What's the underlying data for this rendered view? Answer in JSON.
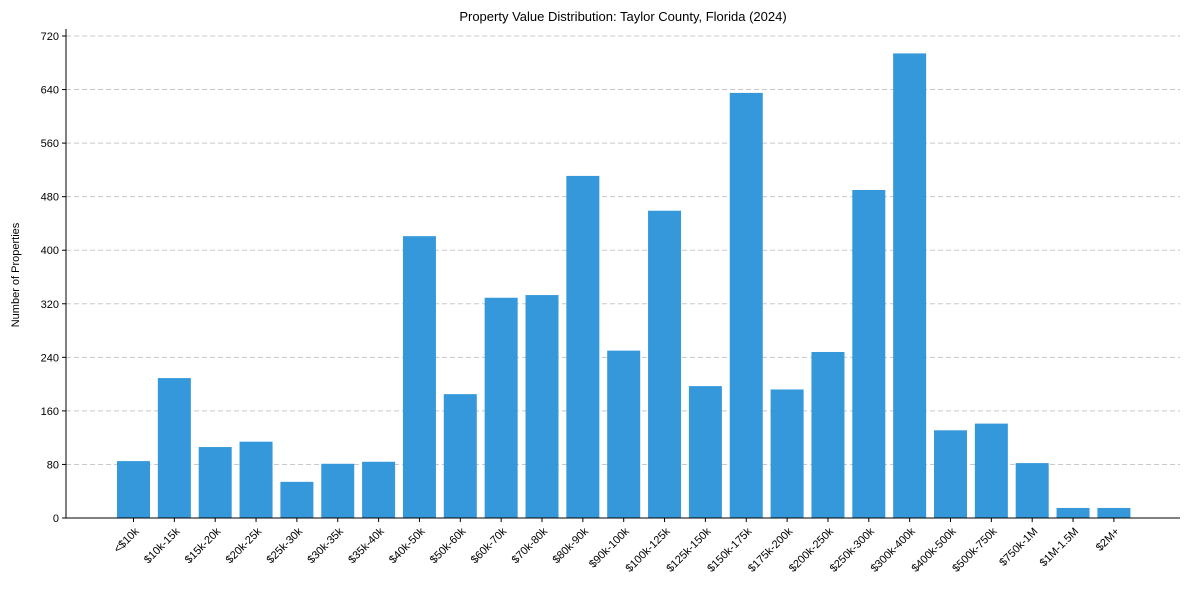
{
  "chart_data": {
    "type": "bar",
    "title": "Property Value Distribution: Taylor County, Florida (2024)",
    "xlabel": "",
    "ylabel": "Number of Properties",
    "ylim": [
      0,
      720
    ],
    "yticks": [
      0,
      80,
      160,
      240,
      320,
      400,
      480,
      560,
      640,
      720
    ],
    "grid": "y-dashed",
    "bar_color": "#3498db",
    "categories": [
      "<$10k",
      "$10k-15k",
      "$15k-20k",
      "$20k-25k",
      "$25k-30k",
      "$30k-35k",
      "$35k-40k",
      "$40k-50k",
      "$50k-60k",
      "$60k-70k",
      "$70k-80k",
      "$80k-90k",
      "$90k-100k",
      "$100k-125k",
      "$125k-150k",
      "$150k-175k",
      "$175k-200k",
      "$200k-250k",
      "$250k-300k",
      "$300k-400k",
      "$400k-500k",
      "$500k-750k",
      "$750k-1M",
      "$1M-1.5M",
      "$2M+"
    ],
    "values": [
      85,
      209,
      106,
      114,
      54,
      81,
      84,
      421,
      185,
      329,
      333,
      511,
      250,
      459,
      197,
      635,
      192,
      248,
      490,
      694,
      131,
      141,
      82,
      15,
      15
    ]
  }
}
